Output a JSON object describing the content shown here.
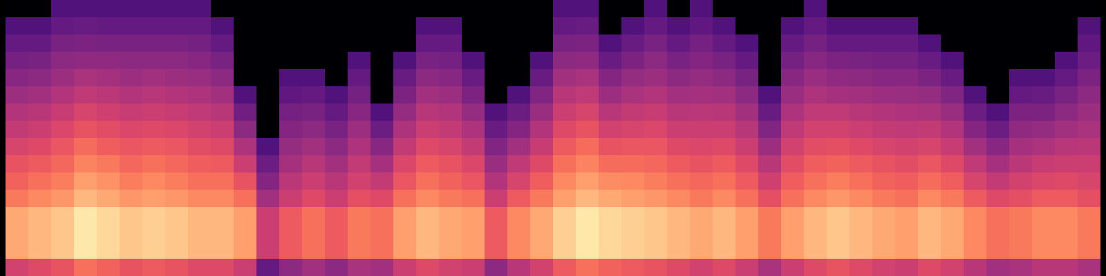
{
  "chart_data": {
    "type": "heatmap",
    "color": "magma",
    "zlim": [
      0,
      100
    ],
    "tick_labels": false,
    "cells": [
      [
        57,
        82,
        82,
        82,
        72,
        67,
        63,
        58,
        53,
        49,
        44,
        39,
        34,
        30,
        25,
        0
      ],
      [
        60,
        85,
        85,
        85,
        75,
        70,
        65,
        60,
        55,
        50,
        45,
        40,
        35,
        30,
        25,
        0
      ],
      [
        63,
        88,
        88,
        88,
        78,
        73,
        68,
        64,
        59,
        54,
        49,
        44,
        40,
        35,
        30,
        25
      ],
      [
        70,
        95,
        95,
        95,
        85,
        80,
        74,
        69,
        63,
        58,
        52,
        47,
        41,
        36,
        31,
        25
      ],
      [
        67,
        92,
        92,
        92,
        82,
        77,
        72,
        66,
        61,
        56,
        51,
        46,
        41,
        35,
        30,
        25
      ],
      [
        63,
        88,
        88,
        88,
        78,
        73,
        68,
        64,
        59,
        54,
        49,
        44,
        40,
        35,
        30,
        25
      ],
      [
        65,
        90,
        90,
        90,
        80,
        75,
        70,
        65,
        60,
        55,
        50,
        45,
        40,
        35,
        30,
        25
      ],
      [
        63,
        88,
        88,
        88,
        78,
        73,
        68,
        64,
        59,
        54,
        49,
        44,
        40,
        35,
        30,
        25
      ],
      [
        60,
        85,
        85,
        85,
        75,
        70,
        66,
        61,
        57,
        52,
        48,
        43,
        39,
        34,
        30,
        25
      ],
      [
        60,
        85,
        85,
        85,
        75,
        70,
        65,
        60,
        55,
        50,
        45,
        40,
        35,
        30,
        25,
        0
      ],
      [
        55,
        80,
        80,
        80,
        70,
        63,
        55,
        48,
        40,
        33,
        25,
        0,
        0,
        0,
        0,
        0
      ],
      [
        30,
        55,
        55,
        55,
        45,
        38,
        32,
        25,
        0,
        0,
        0,
        0,
        0,
        0,
        0,
        0
      ],
      [
        40,
        65,
        65,
        65,
        55,
        51,
        46,
        42,
        38,
        34,
        29,
        25,
        0,
        0,
        0,
        0
      ],
      [
        45,
        70,
        70,
        70,
        60,
        55,
        50,
        45,
        40,
        35,
        30,
        25,
        0,
        0,
        0,
        0
      ],
      [
        40,
        65,
        65,
        65,
        55,
        50,
        45,
        40,
        35,
        30,
        25,
        0,
        0,
        0,
        0,
        0
      ],
      [
        47,
        72,
        72,
        72,
        62,
        57,
        53,
        48,
        44,
        39,
        34,
        30,
        25,
        0,
        0,
        0
      ],
      [
        45,
        70,
        70,
        70,
        60,
        53,
        46,
        39,
        32,
        25,
        0,
        0,
        0,
        0,
        0,
        0
      ],
      [
        55,
        80,
        80,
        80,
        70,
        64,
        59,
        53,
        48,
        42,
        36,
        31,
        25,
        0,
        0,
        0
      ],
      [
        60,
        85,
        85,
        85,
        75,
        70,
        65,
        60,
        55,
        50,
        45,
        40,
        35,
        30,
        25,
        0
      ],
      [
        57,
        82,
        82,
        82,
        72,
        67,
        63,
        58,
        53,
        49,
        44,
        39,
        34,
        30,
        25,
        0
      ],
      [
        55,
        80,
        80,
        80,
        70,
        64,
        59,
        53,
        48,
        42,
        36,
        31,
        25,
        0,
        0,
        0
      ],
      [
        40,
        65,
        65,
        65,
        55,
        49,
        43,
        37,
        31,
        25,
        0,
        0,
        0,
        0,
        0,
        0
      ],
      [
        50,
        75,
        75,
        75,
        65,
        58,
        52,
        45,
        38,
        32,
        25,
        0,
        0,
        0,
        0,
        0
      ],
      [
        57,
        82,
        82,
        82,
        72,
        66,
        60,
        54,
        49,
        43,
        37,
        31,
        25,
        0,
        0,
        0
      ],
      [
        65,
        90,
        90,
        90,
        80,
        75,
        70,
        65,
        60,
        55,
        50,
        45,
        40,
        35,
        30,
        25
      ],
      [
        70,
        95,
        95,
        95,
        85,
        80,
        74,
        69,
        63,
        58,
        52,
        47,
        41,
        36,
        31,
        25
      ],
      [
        67,
        92,
        92,
        92,
        82,
        76,
        69,
        63,
        57,
        50,
        44,
        38,
        31,
        25,
        0,
        0
      ],
      [
        65,
        90,
        90,
        90,
        80,
        75,
        69,
        64,
        58,
        53,
        47,
        42,
        36,
        31,
        25,
        0
      ],
      [
        63,
        88,
        88,
        88,
        78,
        73,
        68,
        64,
        59,
        54,
        49,
        44,
        40,
        35,
        30,
        25
      ],
      [
        60,
        85,
        85,
        85,
        75,
        70,
        65,
        60,
        55,
        50,
        45,
        40,
        35,
        30,
        25,
        0
      ],
      [
        57,
        82,
        82,
        82,
        72,
        68,
        63,
        59,
        55,
        51,
        46,
        42,
        38,
        34,
        29,
        25
      ],
      [
        60,
        85,
        85,
        85,
        75,
        70,
        65,
        60,
        55,
        50,
        45,
        40,
        35,
        30,
        25,
        0
      ],
      [
        55,
        80,
        80,
        80,
        70,
        65,
        60,
        55,
        50,
        45,
        40,
        35,
        30,
        25,
        0,
        0
      ],
      [
        47,
        72,
        72,
        72,
        62,
        56,
        50,
        44,
        37,
        31,
        25,
        0,
        0,
        0,
        0,
        0
      ],
      [
        55,
        80,
        80,
        80,
        70,
        66,
        61,
        57,
        52,
        48,
        43,
        39,
        34,
        30,
        25,
        0
      ],
      [
        60,
        85,
        85,
        85,
        75,
        70,
        66,
        61,
        57,
        52,
        48,
        43,
        39,
        34,
        30,
        25
      ],
      [
        63,
        88,
        88,
        88,
        78,
        73,
        67,
        62,
        57,
        52,
        46,
        41,
        36,
        30,
        25,
        0
      ],
      [
        60,
        85,
        85,
        85,
        75,
        70,
        65,
        60,
        55,
        50,
        45,
        40,
        35,
        30,
        25,
        0
      ],
      [
        57,
        82,
        82,
        82,
        72,
        67,
        63,
        58,
        53,
        49,
        44,
        39,
        34,
        30,
        25,
        0
      ],
      [
        55,
        80,
        80,
        80,
        70,
        66,
        61,
        57,
        52,
        48,
        43,
        39,
        34,
        30,
        25,
        0
      ],
      [
        60,
        85,
        85,
        85,
        75,
        69,
        64,
        58,
        53,
        47,
        42,
        36,
        31,
        25,
        0,
        0
      ],
      [
        57,
        82,
        82,
        82,
        72,
        66,
        60,
        54,
        49,
        43,
        37,
        31,
        25,
        0,
        0,
        0
      ],
      [
        50,
        75,
        75,
        75,
        65,
        58,
        52,
        45,
        38,
        32,
        25,
        0,
        0,
        0,
        0,
        0
      ],
      [
        45,
        70,
        70,
        70,
        60,
        53,
        46,
        39,
        32,
        25,
        0,
        0,
        0,
        0,
        0,
        0
      ],
      [
        47,
        72,
        72,
        72,
        62,
        57,
        51,
        46,
        41,
        36,
        30,
        25,
        0,
        0,
        0,
        0
      ],
      [
        50,
        75,
        75,
        75,
        65,
        59,
        54,
        48,
        42,
        36,
        31,
        25,
        0,
        0,
        0,
        0
      ],
      [
        50,
        75,
        75,
        75,
        65,
        60,
        55,
        50,
        45,
        40,
        35,
        30,
        25,
        0,
        0,
        0
      ],
      [
        47,
        72,
        72,
        72,
        62,
        58,
        55,
        51,
        47,
        44,
        40,
        36,
        32,
        29,
        25,
        0
      ]
    ]
  }
}
